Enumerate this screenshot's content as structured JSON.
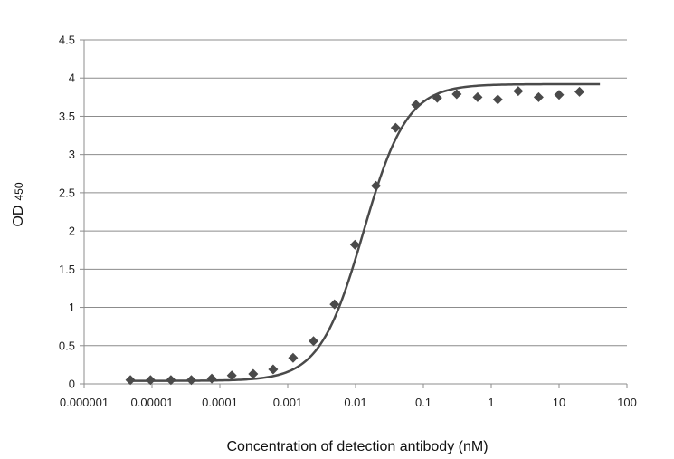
{
  "chart_data": {
    "type": "scatter",
    "title": "",
    "xlabel": "Concentration of detection antibody (nM)",
    "ylabel_main": "OD",
    "ylabel_sub": "450",
    "x_scale": "log",
    "xlim": [
      1e-06,
      100
    ],
    "ylim": [
      0,
      4.5
    ],
    "grid": {
      "horizontal": true,
      "vertical": false
    },
    "legend": "none",
    "x_ticks": [
      {
        "value": 1e-06,
        "label": "0.000001"
      },
      {
        "value": 1e-05,
        "label": "0.00001"
      },
      {
        "value": 0.0001,
        "label": "0.0001"
      },
      {
        "value": 0.001,
        "label": "0.001"
      },
      {
        "value": 0.01,
        "label": "0.01"
      },
      {
        "value": 0.1,
        "label": "0.1"
      },
      {
        "value": 1,
        "label": "1"
      },
      {
        "value": 10,
        "label": "10"
      },
      {
        "value": 100,
        "label": "100"
      }
    ],
    "y_ticks": [
      {
        "value": 0,
        "label": "0"
      },
      {
        "value": 0.5,
        "label": "0.5"
      },
      {
        "value": 1,
        "label": "1"
      },
      {
        "value": 1.5,
        "label": "1.5"
      },
      {
        "value": 2,
        "label": "2"
      },
      {
        "value": 2.5,
        "label": "2.5"
      },
      {
        "value": 3,
        "label": "3"
      },
      {
        "value": 3.5,
        "label": "3.5"
      },
      {
        "value": 4,
        "label": "4"
      },
      {
        "value": 4.5,
        "label": "4.5"
      }
    ],
    "series": [
      {
        "marker": "diamond",
        "points": [
          {
            "x": 4.8e-06,
            "y": 0.05
          },
          {
            "x": 9.5e-06,
            "y": 0.05
          },
          {
            "x": 1.9e-05,
            "y": 0.05
          },
          {
            "x": 3.8e-05,
            "y": 0.05
          },
          {
            "x": 7.6e-05,
            "y": 0.07
          },
          {
            "x": 0.00015,
            "y": 0.11
          },
          {
            "x": 0.00031,
            "y": 0.13
          },
          {
            "x": 0.00061,
            "y": 0.19
          },
          {
            "x": 0.0012,
            "y": 0.34
          },
          {
            "x": 0.0024,
            "y": 0.56
          },
          {
            "x": 0.0049,
            "y": 1.04
          },
          {
            "x": 0.0098,
            "y": 1.82
          },
          {
            "x": 0.02,
            "y": 2.59
          },
          {
            "x": 0.039,
            "y": 3.35
          },
          {
            "x": 0.078,
            "y": 3.65
          },
          {
            "x": 0.16,
            "y": 3.74
          },
          {
            "x": 0.31,
            "y": 3.79
          },
          {
            "x": 0.63,
            "y": 3.75
          },
          {
            "x": 1.25,
            "y": 3.72
          },
          {
            "x": 2.5,
            "y": 3.83
          },
          {
            "x": 5,
            "y": 3.75
          },
          {
            "x": 10,
            "y": 3.78
          },
          {
            "x": 20,
            "y": 3.82
          }
        ]
      }
    ],
    "fit_curve": {
      "type": "4PL",
      "bottom": 0.04,
      "top": 3.92,
      "ec50": 0.013,
      "hill": 1.35,
      "x_range": [
        4.5e-06,
        40
      ]
    },
    "colors": {
      "markers": "#4a4a4a",
      "curve": "#4a4a4a",
      "grid": "#8c8c8c",
      "axis": "#8c8c8c",
      "text": "#222222"
    }
  }
}
